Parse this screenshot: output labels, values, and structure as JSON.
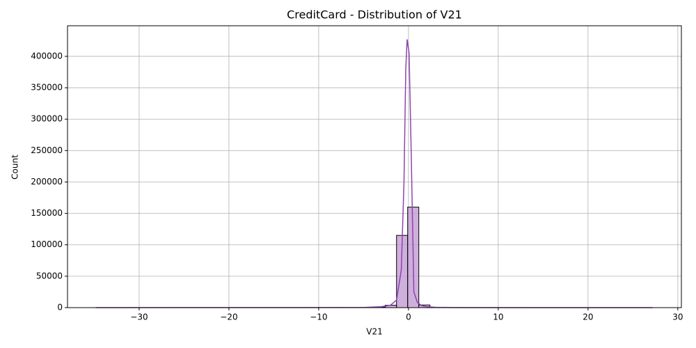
{
  "chart_data": {
    "type": "histogram",
    "title": "CreditCard - Distribution of V21",
    "xlabel": "V21",
    "ylabel": "Count",
    "bins": [
      -34.83,
      -33.59,
      -32.35,
      -31.11,
      -29.87,
      -28.63,
      -27.39,
      -26.15,
      -24.91,
      -23.67,
      -22.42,
      -21.18,
      -19.94,
      -18.7,
      -17.46,
      -16.22,
      -14.98,
      -13.74,
      -12.5,
      -11.26,
      -10.02,
      -8.78,
      -7.54,
      -6.3,
      -5.06,
      -3.82,
      -2.58,
      -1.33,
      -0.09,
      1.15,
      2.39,
      3.63,
      4.87,
      6.11,
      7.35,
      8.59,
      9.83,
      11.07,
      12.31,
      13.55,
      14.79,
      16.03,
      17.27,
      18.51,
      19.76,
      21.0,
      22.24,
      23.48,
      24.72,
      25.96,
      27.2
    ],
    "counts": [
      1,
      0,
      0,
      0,
      0,
      0,
      0,
      0,
      0,
      0,
      0,
      1,
      0,
      2,
      1,
      3,
      2,
      5,
      4,
      10,
      8,
      15,
      30,
      70,
      250,
      900,
      3800,
      115000,
      160000,
      4200,
      400,
      90,
      30,
      15,
      8,
      5,
      3,
      2,
      1,
      1,
      0,
      0,
      1,
      0,
      0,
      0,
      0,
      0,
      0,
      1
    ],
    "color": "#c39bd3",
    "edgecolor": "#000000",
    "kde": {
      "color": "#8e44ad",
      "x": [
        -34.83,
        -5,
        -3,
        -2,
        -1.33,
        -0.8,
        -0.5,
        -0.3,
        -0.15,
        0.07,
        0.3,
        0.6,
        1,
        1.5,
        2,
        3,
        5,
        27.2
      ],
      "values": [
        0,
        300,
        1500,
        4000,
        12000,
        60000,
        200000,
        380000,
        427000,
        405000,
        250000,
        25000,
        8000,
        3000,
        1500,
        500,
        100,
        0
      ]
    },
    "xlim": [
      -37.98,
      30.4
    ],
    "ylim": [
      0,
      448700
    ],
    "xticks": [
      {
        "value": -30,
        "label": "−30"
      },
      {
        "value": -20,
        "label": "−20"
      },
      {
        "value": -10,
        "label": "−10"
      },
      0,
      10,
      20,
      30
    ],
    "yticks": [
      0,
      50000,
      100000,
      150000,
      200000,
      250000,
      300000,
      350000,
      400000
    ],
    "grid": true
  }
}
